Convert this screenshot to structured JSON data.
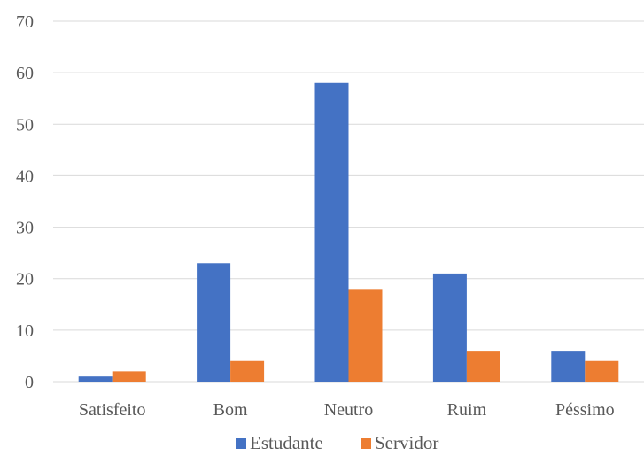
{
  "chart_data": {
    "type": "bar",
    "categories": [
      "Satisfeito",
      "Bom",
      "Neutro",
      "Ruim",
      "Péssimo"
    ],
    "series": [
      {
        "name": "Estudante",
        "color": "#4472C4",
        "values": [
          1,
          23,
          58,
          21,
          6
        ]
      },
      {
        "name": "Servidor",
        "color": "#ED7D31",
        "values": [
          2,
          4,
          18,
          6,
          4
        ]
      }
    ],
    "ylim": [
      0,
      70
    ],
    "yticks": [
      0,
      10,
      20,
      30,
      40,
      50,
      60,
      70
    ],
    "grid": true,
    "legend_position": "bottom"
  }
}
